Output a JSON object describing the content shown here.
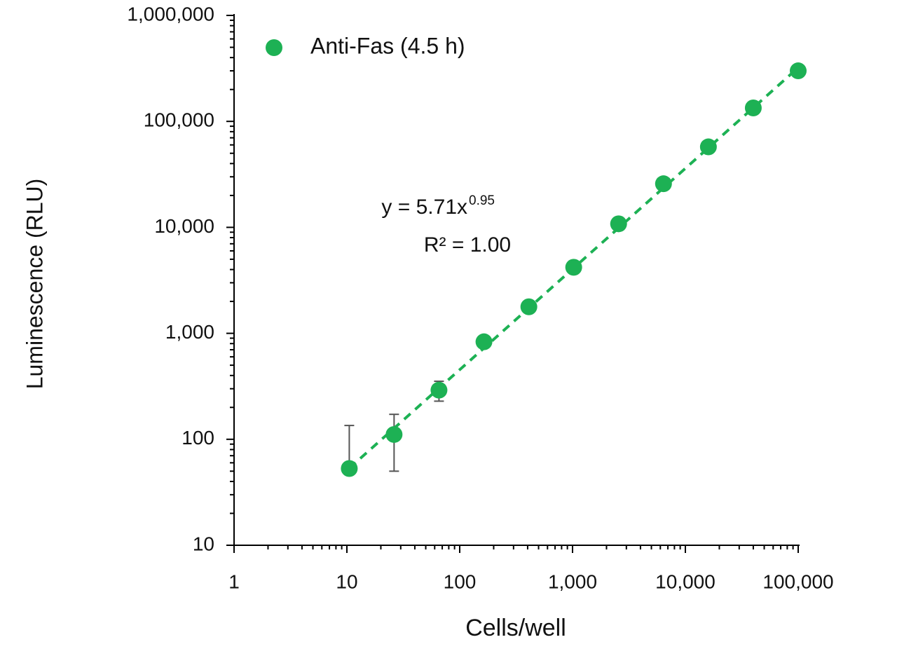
{
  "chart_data": {
    "type": "scatter",
    "x_label": "Cells/well",
    "y_label": "Luminescence (RLU)",
    "xscale": "log",
    "yscale": "log",
    "xlim": [
      1,
      100000
    ],
    "ylim": [
      10,
      1000000
    ],
    "xticks": [
      1,
      10,
      100,
      {
        "value": 1000,
        "label": "1,000"
      },
      {
        "value": 10000,
        "label": "10,000"
      },
      {
        "value": 100000,
        "label": "100,000"
      }
    ],
    "yticks": [
      10,
      100,
      {
        "value": 1000,
        "label": "1,000"
      },
      {
        "value": 10000,
        "label": "10,000"
      },
      {
        "value": 100000,
        "label": "100,000"
      },
      {
        "value": 1000000,
        "label": "1,000,000"
      }
    ],
    "legend": "upper left",
    "series": [
      {
        "name": "Anti-Fas (4.5 h)",
        "color": "#1db154",
        "x": [
          10.5,
          26.2,
          65.5,
          164,
          410,
          1024,
          2560,
          6400,
          16000,
          40000,
          100000
        ],
        "values": [
          53,
          111,
          291,
          832,
          1780,
          4200,
          10800,
          25800,
          57500,
          134000,
          300000
        ],
        "errors": [
          82,
          61,
          62,
          null,
          null,
          null,
          null,
          null,
          null,
          null,
          null
        ],
        "trendline_coefficient": 5.71,
        "trendline_exponent": 0.95
      }
    ],
    "equation": "y = 5.71x",
    "equation_exponent": "0.95",
    "r_squared": "R² = 1.00"
  }
}
